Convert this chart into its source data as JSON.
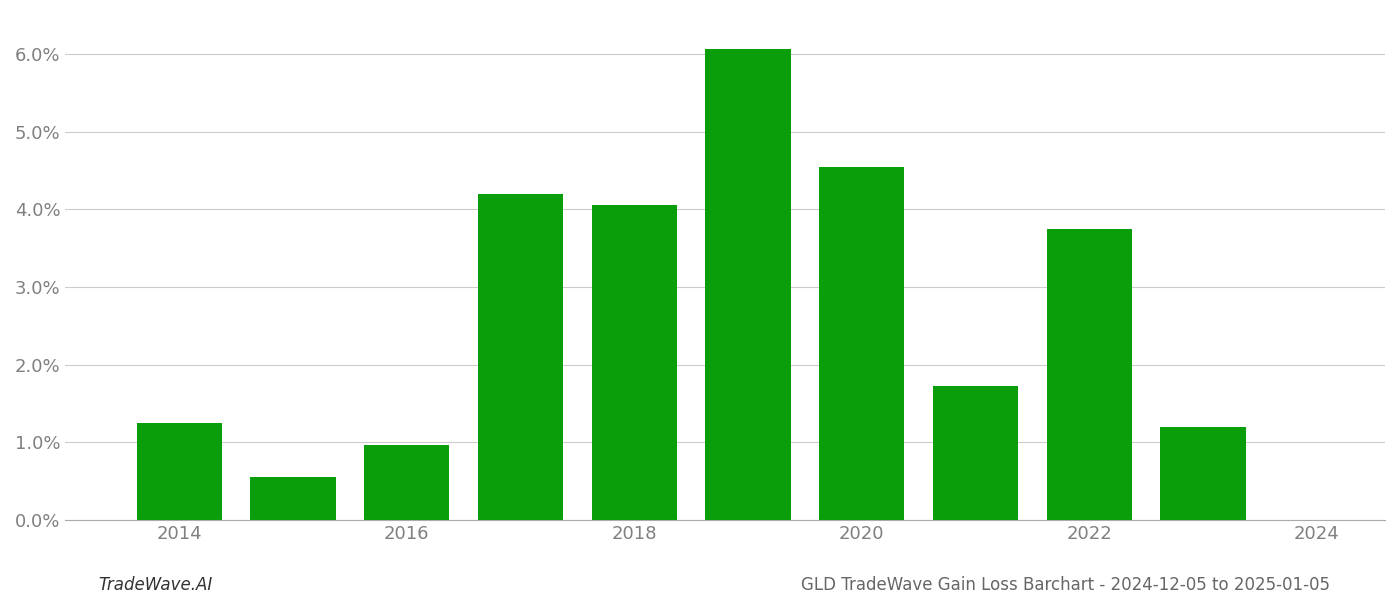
{
  "years": [
    2014,
    2015,
    2016,
    2017,
    2018,
    2019,
    2020,
    2021,
    2022,
    2023
  ],
  "values": [
    0.0125,
    0.0055,
    0.0097,
    0.042,
    0.0405,
    0.0606,
    0.0455,
    0.0173,
    0.0375,
    0.012
  ],
  "bar_color": "#0a9e0a",
  "background_color": "#ffffff",
  "grid_color": "#cccccc",
  "axis_label_color": "#808080",
  "ylabel_ticks": [
    0.0,
    0.01,
    0.02,
    0.03,
    0.04,
    0.05,
    0.06
  ],
  "ylabel_labels": [
    "0.0%",
    "1.0%",
    "2.0%",
    "3.0%",
    "4.0%",
    "5.0%",
    "6.0%"
  ],
  "xticks": [
    2014,
    2016,
    2018,
    2020,
    2022,
    2024
  ],
  "xlim": [
    2013.0,
    2024.6
  ],
  "ylim": [
    0.0,
    0.065
  ],
  "footer_left": "TradeWave.AI",
  "footer_right": "GLD TradeWave Gain Loss Barchart - 2024-12-05 to 2025-01-05",
  "bar_width": 0.75,
  "figsize": [
    14.0,
    6.0
  ],
  "dpi": 100
}
